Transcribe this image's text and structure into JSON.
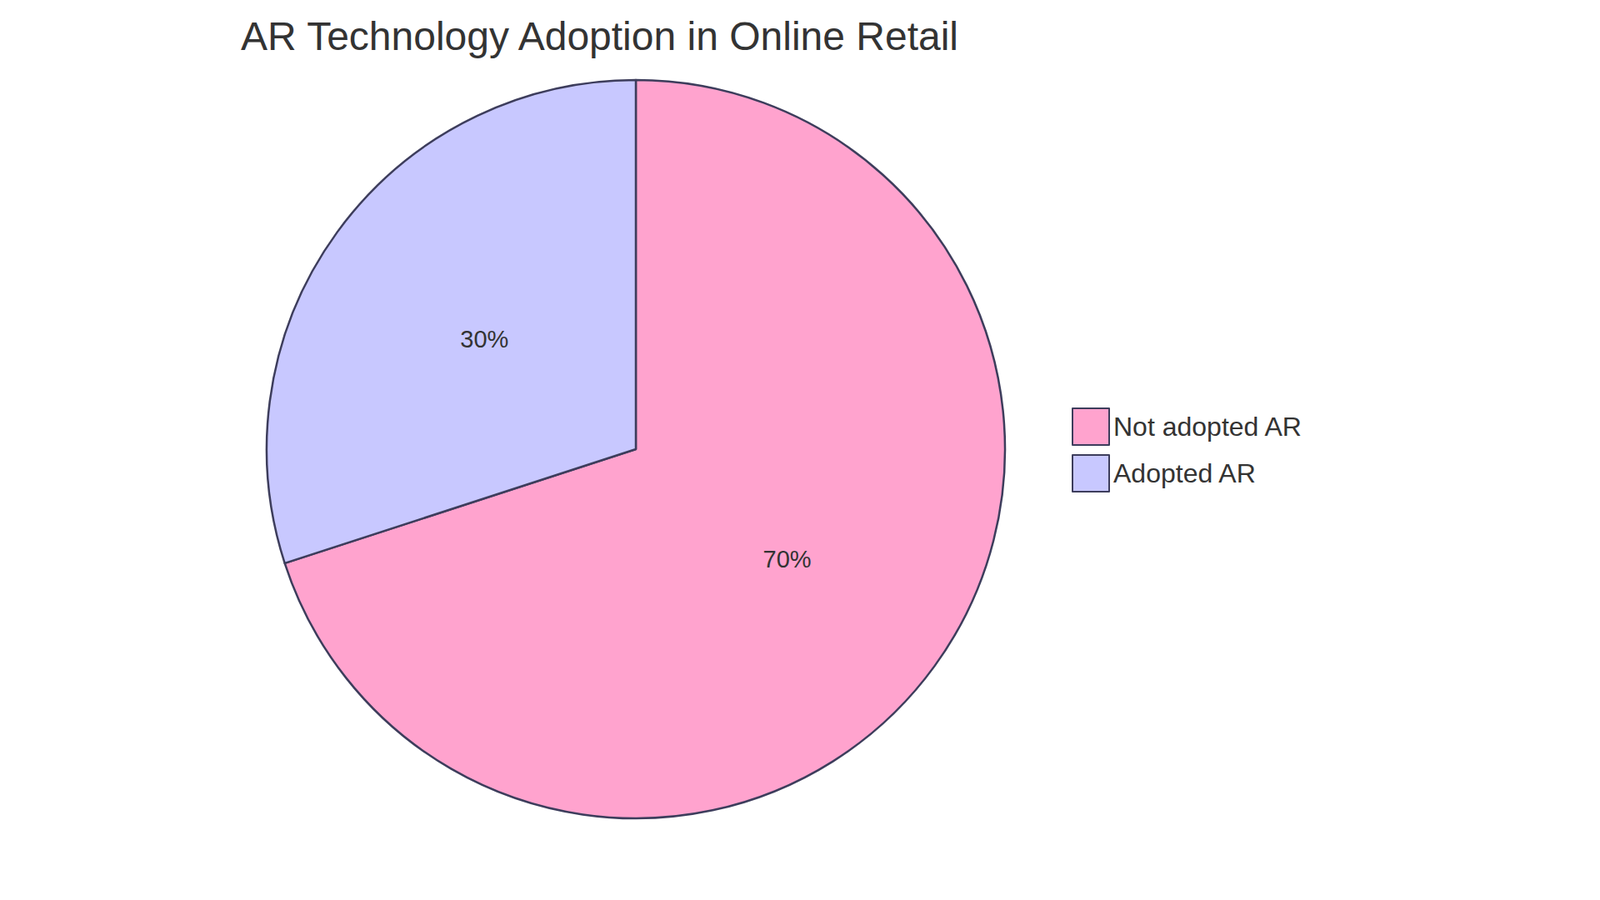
{
  "chart_data": {
    "type": "pie",
    "title": "AR Technology Adoption in Online Retail",
    "categories": [
      "Not adopted AR",
      "Adopted AR"
    ],
    "values": [
      70,
      30
    ],
    "value_labels": [
      "70%",
      "30%"
    ],
    "colors": [
      "#FFA3CE",
      "#C8C8FF"
    ],
    "data_labels": true,
    "legend": "right"
  }
}
